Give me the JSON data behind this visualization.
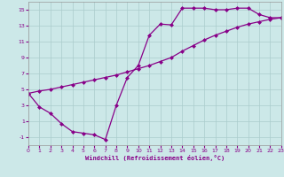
{
  "xlabel": "Windchill (Refroidissement éolien,°C)",
  "bg_color": "#cce8e8",
  "grid_color": "#aacccc",
  "line_color": "#880088",
  "zigzag_x": [
    0,
    1,
    2,
    3,
    4,
    5,
    6,
    7,
    8,
    9,
    10,
    11,
    12,
    13,
    14,
    15,
    16,
    17,
    18,
    19,
    20,
    21,
    22,
    23
  ],
  "zigzag_y": [
    4.5,
    2.8,
    2.0,
    0.7,
    -0.3,
    -0.5,
    -0.7,
    -1.3,
    3.0,
    6.5,
    8.0,
    11.8,
    13.2,
    13.1,
    15.2,
    15.2,
    15.2,
    15.0,
    15.0,
    15.2,
    15.2,
    14.4,
    14.0,
    14.0
  ],
  "diag_x": [
    0,
    1,
    2,
    3,
    4,
    5,
    6,
    7,
    8,
    9,
    10,
    11,
    12,
    13,
    14,
    15,
    16,
    17,
    18,
    19,
    20,
    21,
    22,
    23
  ],
  "diag_y": [
    4.5,
    4.8,
    5.0,
    5.3,
    5.6,
    5.9,
    6.2,
    6.5,
    6.8,
    7.2,
    7.6,
    8.0,
    8.5,
    9.0,
    9.8,
    10.5,
    11.2,
    11.8,
    12.3,
    12.8,
    13.2,
    13.5,
    13.8,
    14.0
  ],
  "ylim": [
    -2.0,
    16.0
  ],
  "xlim": [
    0,
    23
  ],
  "yticks": [
    -1,
    1,
    3,
    5,
    7,
    9,
    11,
    13,
    15
  ],
  "xticks": [
    0,
    1,
    2,
    3,
    4,
    5,
    6,
    7,
    8,
    9,
    10,
    11,
    12,
    13,
    14,
    15,
    16,
    17,
    18,
    19,
    20,
    21,
    22,
    23
  ],
  "markersize": 2.5,
  "linewidth": 0.9,
  "tick_fontsize": 4.5,
  "xlabel_fontsize": 5.0
}
